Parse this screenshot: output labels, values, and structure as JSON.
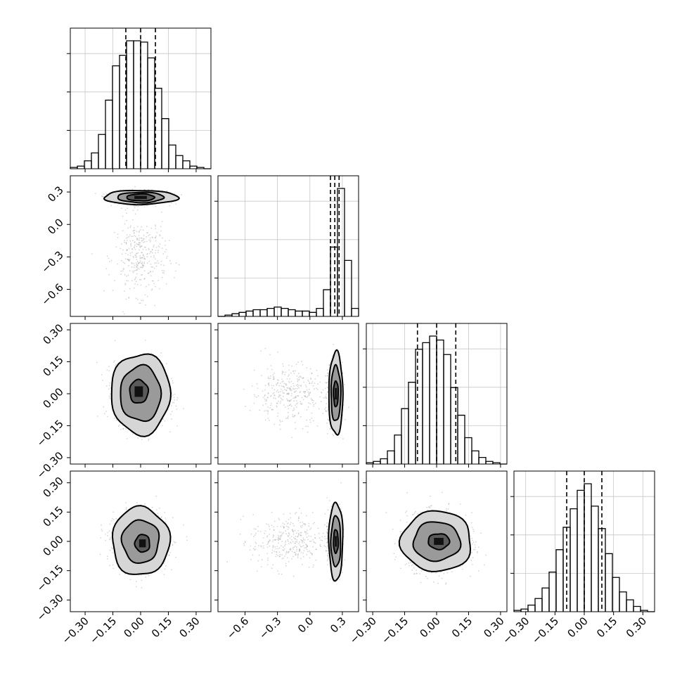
{
  "chart_data": {
    "type": "corner",
    "style": {
      "grid": true,
      "color": "#000000",
      "grid_color": "#c8c8c8",
      "sample_color": "#8a8a8a"
    },
    "parameters": [
      {
        "index": 0,
        "range": [
          -0.38,
          0.38
        ],
        "ticks": [
          -0.3,
          -0.15,
          0.0,
          0.15,
          0.3
        ],
        "tick_labels": [
          "−0.30",
          "−0.15",
          "0.00",
          "0.15",
          "0.30"
        ]
      },
      {
        "index": 1,
        "range": [
          -0.85,
          0.45
        ],
        "ticks": [
          -0.6,
          -0.3,
          0.0,
          0.3
        ],
        "tick_labels": [
          "−0.6",
          "−0.3",
          "0.0",
          "0.3"
        ]
      },
      {
        "index": 2,
        "range": [
          -0.33,
          0.33
        ],
        "ticks": [
          -0.3,
          -0.15,
          0.0,
          0.15,
          0.3
        ],
        "tick_labels": [
          "−0.30",
          "−0.15",
          "0.00",
          "0.15",
          "0.30"
        ]
      },
      {
        "index": 3,
        "range": [
          -0.36,
          0.36
        ],
        "ticks": [
          -0.3,
          -0.15,
          0.0,
          0.15,
          0.3
        ],
        "tick_labels": [
          "−0.30",
          "−0.15",
          "0.00",
          "0.15",
          "0.30"
        ]
      }
    ],
    "histograms": [
      {
        "param": 0,
        "bins": 20,
        "counts": [
          1,
          2,
          6,
          12,
          26,
          52,
          78,
          86,
          97,
          97,
          96,
          84,
          61,
          38,
          18,
          10,
          6,
          2,
          1,
          0
        ],
        "quantiles": [
          -0.08,
          0.0,
          0.08
        ]
      },
      {
        "param": 1,
        "bins": 20,
        "counts": [
          0,
          1,
          2,
          3,
          4,
          5,
          5,
          6,
          7,
          6,
          5,
          4,
          4,
          3,
          6,
          20,
          52,
          96,
          42,
          6
        ],
        "quantiles": [
          0.19,
          0.23,
          0.27
        ]
      },
      {
        "param": 2,
        "bins": 20,
        "counts": [
          1,
          2,
          4,
          10,
          22,
          42,
          62,
          87,
          92,
          97,
          94,
          83,
          58,
          37,
          20,
          10,
          5,
          2,
          1,
          0
        ],
        "quantiles": [
          -0.09,
          0.0,
          0.09
        ]
      },
      {
        "param": 3,
        "bins": 20,
        "counts": [
          1,
          2,
          5,
          10,
          18,
          30,
          47,
          64,
          78,
          92,
          97,
          80,
          63,
          44,
          26,
          15,
          9,
          4,
          1,
          0
        ],
        "quantiles": [
          -0.09,
          0.0,
          0.09
        ]
      }
    ],
    "pairs": [
      {
        "x": 0,
        "y": 1,
        "clusters": [
          {
            "cx": 0.0,
            "cy": 0.25,
            "sx": 0.07,
            "sy": 0.03,
            "weight": 0.75
          },
          {
            "cx": 0.0,
            "cy": -0.3,
            "sx": 0.07,
            "sy": 0.18,
            "weight": 0.25
          }
        ],
        "contours": [
          {
            "cx": 0.0,
            "cy": 0.25,
            "rx": 0.2,
            "ry": 0.065
          },
          {
            "cx": 0.0,
            "cy": 0.25,
            "rx": 0.125,
            "ry": 0.048
          },
          {
            "cx": 0.0,
            "cy": 0.25,
            "rx": 0.075,
            "ry": 0.032
          }
        ]
      },
      {
        "x": 0,
        "y": 2,
        "clusters": [
          {
            "cx": 0.0,
            "cy": 0.0,
            "sx": 0.07,
            "sy": 0.07,
            "weight": 1
          }
        ],
        "contours": [
          {
            "cx": 0.0,
            "cy": 0.0,
            "rx": 0.16,
            "ry": 0.19
          },
          {
            "cx": 0.0,
            "cy": 0.0,
            "rx": 0.11,
            "ry": 0.13
          },
          {
            "cx": -0.01,
            "cy": 0.01,
            "rx": 0.05,
            "ry": 0.055
          }
        ]
      },
      {
        "x": 1,
        "y": 2,
        "clusters": [
          {
            "cx": 0.23,
            "cy": 0.0,
            "sx": 0.03,
            "sy": 0.07,
            "weight": 0.75
          },
          {
            "cx": -0.2,
            "cy": 0.0,
            "sx": 0.17,
            "sy": 0.07,
            "weight": 0.25
          }
        ],
        "contours": [
          {
            "cx": 0.24,
            "cy": 0.0,
            "rx": 0.065,
            "ry": 0.195
          },
          {
            "cx": 0.24,
            "cy": 0.0,
            "rx": 0.045,
            "ry": 0.13
          },
          {
            "cx": 0.24,
            "cy": 0.0,
            "rx": 0.022,
            "ry": 0.06
          }
        ]
      },
      {
        "x": 0,
        "y": 3,
        "clusters": [
          {
            "cx": 0.0,
            "cy": 0.0,
            "sx": 0.07,
            "sy": 0.07,
            "weight": 1
          }
        ],
        "contours": [
          {
            "cx": 0.0,
            "cy": 0.0,
            "rx": 0.155,
            "ry": 0.175
          },
          {
            "cx": 0.0,
            "cy": 0.0,
            "rx": 0.1,
            "ry": 0.11
          },
          {
            "cx": 0.01,
            "cy": -0.01,
            "rx": 0.04,
            "ry": 0.045
          }
        ]
      },
      {
        "x": 1,
        "y": 3,
        "clusters": [
          {
            "cx": 0.23,
            "cy": 0.0,
            "sx": 0.03,
            "sy": 0.07,
            "weight": 0.75
          },
          {
            "cx": -0.2,
            "cy": 0.0,
            "sx": 0.17,
            "sy": 0.07,
            "weight": 0.25
          }
        ],
        "contours": [
          {
            "cx": 0.24,
            "cy": 0.0,
            "rx": 0.065,
            "ry": 0.2
          },
          {
            "cx": 0.24,
            "cy": 0.0,
            "rx": 0.045,
            "ry": 0.13
          },
          {
            "cx": 0.24,
            "cy": 0.0,
            "rx": 0.022,
            "ry": 0.06
          }
        ]
      },
      {
        "x": 2,
        "y": 3,
        "clusters": [
          {
            "cx": 0.0,
            "cy": 0.0,
            "sx": 0.07,
            "sy": 0.07,
            "weight": 1
          }
        ],
        "contours": [
          {
            "cx": 0.0,
            "cy": 0.0,
            "rx": 0.165,
            "ry": 0.155
          },
          {
            "cx": 0.0,
            "cy": 0.0,
            "rx": 0.11,
            "ry": 0.1
          },
          {
            "cx": 0.01,
            "cy": 0.0,
            "rx": 0.05,
            "ry": 0.04
          }
        ]
      }
    ]
  }
}
